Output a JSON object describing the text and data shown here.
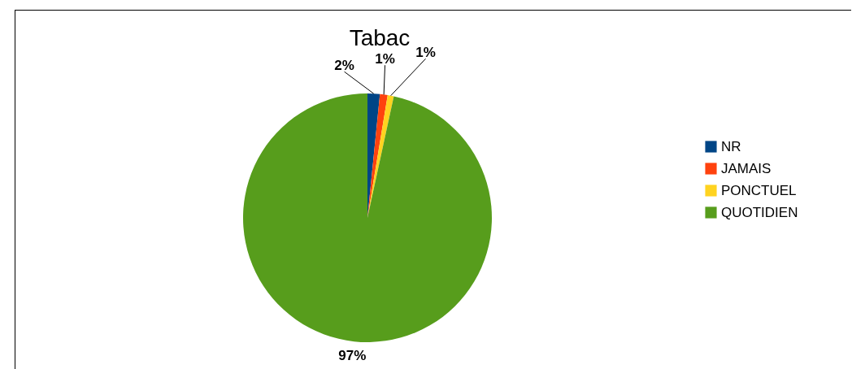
{
  "chart_data": {
    "type": "pie",
    "title": "Tabac",
    "categories": [
      "NR",
      "JAMAIS",
      "PONCTUEL",
      "QUOTIDIEN"
    ],
    "values": [
      1.6,
      1.0,
      0.8,
      96.6
    ],
    "value_labels": [
      "2%",
      "1%",
      "1%",
      "97%"
    ],
    "colors": [
      "#004586",
      "#ff420e",
      "#ffd320",
      "#579d1c"
    ],
    "legend": "right"
  }
}
